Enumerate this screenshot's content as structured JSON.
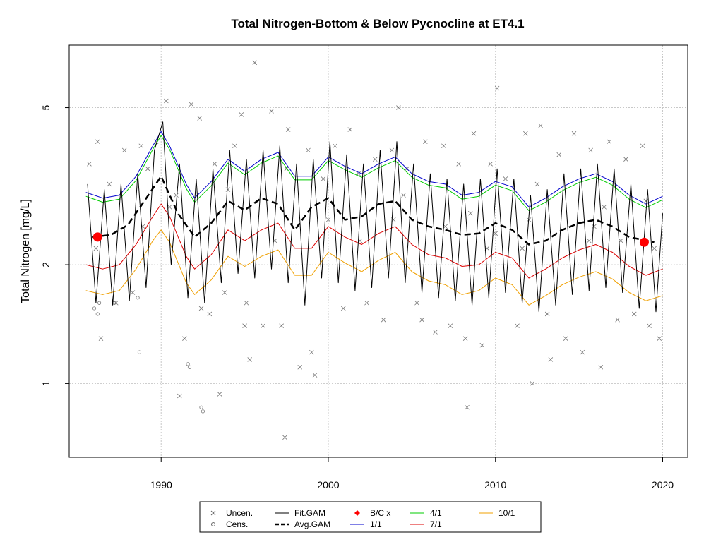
{
  "chart_data": {
    "type": "line",
    "title": "Total Nitrogen-Bottom & Below Pycnocline at ET4.1",
    "xlabel": "",
    "ylabel": "Total Nitrogen [mg/L]",
    "y_scale": "log",
    "xlim": [
      1984.5,
      2021.5
    ],
    "ylim": [
      0.65,
      7.2
    ],
    "x_ticks": [
      "1990",
      "2000",
      "2010",
      "2020"
    ],
    "y_ticks": [
      "1",
      "2",
      "5"
    ],
    "grid": true,
    "legend_position": "bottom",
    "legend": [
      {
        "label": "Uncen.",
        "kind": "x-marker",
        "color": "#666666"
      },
      {
        "label": "Cens.",
        "kind": "circle-marker",
        "color": "#666666"
      },
      {
        "label": "Fit.GAM",
        "kind": "line",
        "color": "#000000"
      },
      {
        "label": "Avg.GAM",
        "kind": "dashed-line",
        "color": "#000000"
      },
      {
        "label": "B/C x",
        "kind": "diamond-marker",
        "color": "#ff0000"
      },
      {
        "label": "1/1",
        "kind": "line",
        "color": "#0000cc"
      },
      {
        "label": "4/1",
        "kind": "line",
        "color": "#00cc00"
      },
      {
        "label": "7/1",
        "kind": "line",
        "color": "#dd0000"
      },
      {
        "label": "10/1",
        "kind": "line",
        "color": "#f0a000"
      }
    ],
    "series": [
      {
        "name": "Avg.GAM",
        "color": "#000000",
        "x": [
          1985.9,
          1987,
          1988,
          1989,
          1990,
          1991,
          1992,
          1993,
          1994,
          1995,
          1996,
          1997,
          1998,
          1999,
          2000,
          2001,
          2002,
          2003,
          2004,
          2005,
          2006,
          2007,
          2008,
          2009,
          2010,
          2011,
          2012,
          2013,
          2014,
          2015,
          2016,
          2017,
          2018,
          2019.5
        ],
        "y": [
          2.35,
          2.38,
          2.52,
          2.9,
          3.35,
          2.7,
          2.35,
          2.55,
          2.9,
          2.75,
          2.95,
          2.85,
          2.45,
          2.8,
          2.95,
          2.6,
          2.65,
          2.85,
          2.9,
          2.6,
          2.5,
          2.45,
          2.38,
          2.4,
          2.55,
          2.45,
          2.25,
          2.3,
          2.45,
          2.55,
          2.6,
          2.5,
          2.35,
          2.28
        ]
      },
      {
        "name": "1/1",
        "color": "#0000cc",
        "x": [
          1985.5,
          1986.5,
          1987.5,
          1988.5,
          1989.5,
          1990,
          1990.5,
          1991.5,
          1992,
          1993,
          1994,
          1995,
          1996,
          1997,
          1998,
          1999,
          2000,
          2001,
          2002,
          2003,
          2004,
          2005,
          2006,
          2007,
          2008,
          2009,
          2010,
          2011,
          2012,
          2013,
          2014,
          2015,
          2016,
          2017,
          2018,
          2019,
          2020
        ],
        "y": [
          3.05,
          2.95,
          3.0,
          3.35,
          4.0,
          4.35,
          4.0,
          3.2,
          2.95,
          3.25,
          3.7,
          3.45,
          3.7,
          3.85,
          3.35,
          3.35,
          3.75,
          3.55,
          3.4,
          3.6,
          3.75,
          3.4,
          3.25,
          3.2,
          3.0,
          3.05,
          3.25,
          3.15,
          2.8,
          2.95,
          3.15,
          3.3,
          3.4,
          3.25,
          3.0,
          2.85,
          2.98
        ]
      },
      {
        "name": "4/1",
        "color": "#00cc00",
        "x": [
          1985.5,
          1986.5,
          1987.5,
          1988.5,
          1989.5,
          1990,
          1990.5,
          1991.5,
          1992,
          1993,
          1994,
          1995,
          1996,
          1997,
          1998,
          1999,
          2000,
          2001,
          2002,
          2003,
          2004,
          2005,
          2006,
          2007,
          2008,
          2009,
          2010,
          2011,
          2012,
          2013,
          2014,
          2015,
          2016,
          2017,
          2018,
          2019,
          2020
        ],
        "y": [
          2.98,
          2.88,
          2.93,
          3.27,
          3.92,
          4.25,
          3.92,
          3.12,
          2.88,
          3.17,
          3.62,
          3.38,
          3.62,
          3.77,
          3.28,
          3.28,
          3.67,
          3.48,
          3.33,
          3.52,
          3.67,
          3.33,
          3.18,
          3.13,
          2.93,
          2.98,
          3.18,
          3.08,
          2.74,
          2.88,
          3.08,
          3.23,
          3.33,
          3.18,
          2.93,
          2.79,
          2.92
        ]
      },
      {
        "name": "7/1",
        "color": "#dd0000",
        "x": [
          1985.5,
          1986.5,
          1987.5,
          1988.5,
          1989.5,
          1990,
          1990.5,
          1991.5,
          1992,
          1993,
          1994,
          1995,
          1996,
          1997,
          1998,
          1999,
          2000,
          2001,
          2002,
          2003,
          2004,
          2005,
          2006,
          2007,
          2008,
          2009,
          2010,
          2011,
          2012,
          2013,
          2014,
          2015,
          2016,
          2017,
          2018,
          2019,
          2020
        ],
        "y": [
          2.0,
          1.95,
          2.0,
          2.25,
          2.65,
          2.85,
          2.65,
          2.1,
          1.95,
          2.12,
          2.45,
          2.3,
          2.45,
          2.55,
          2.2,
          2.2,
          2.5,
          2.35,
          2.25,
          2.4,
          2.5,
          2.25,
          2.12,
          2.08,
          1.98,
          2.0,
          2.15,
          2.08,
          1.85,
          1.95,
          2.08,
          2.18,
          2.25,
          2.15,
          1.98,
          1.88,
          1.95
        ]
      },
      {
        "name": "10/1",
        "color": "#f0a000",
        "x": [
          1985.5,
          1986.5,
          1987.5,
          1988.5,
          1989.5,
          1990,
          1990.5,
          1991.5,
          1992,
          1993,
          1994,
          1995,
          1996,
          1997,
          1998,
          1999,
          2000,
          2001,
          2002,
          2003,
          2004,
          2005,
          2006,
          2007,
          2008,
          2009,
          2010,
          2011,
          2012,
          2013,
          2014,
          2015,
          2016,
          2017,
          2018,
          2019,
          2020
        ],
        "y": [
          1.72,
          1.68,
          1.72,
          1.95,
          2.3,
          2.45,
          2.28,
          1.8,
          1.68,
          1.83,
          2.1,
          1.98,
          2.1,
          2.18,
          1.88,
          1.88,
          2.15,
          2.02,
          1.92,
          2.05,
          2.15,
          1.92,
          1.82,
          1.78,
          1.68,
          1.72,
          1.85,
          1.78,
          1.58,
          1.67,
          1.78,
          1.86,
          1.92,
          1.84,
          1.7,
          1.62,
          1.67
        ]
      },
      {
        "name": "Fit.GAM",
        "color": "#000000",
        "x": [
          1985.6,
          1986.1,
          1986.6,
          1987.1,
          1987.6,
          1988.1,
          1988.6,
          1989.1,
          1989.6,
          1990.1,
          1990.6,
          1991.1,
          1991.6,
          1992.1,
          1992.6,
          1993.1,
          1993.6,
          1994.1,
          1994.6,
          1995.1,
          1995.6,
          1996.1,
          1996.6,
          1997.1,
          1997.6,
          1998.1,
          1998.6,
          1999.1,
          1999.6,
          2000.1,
          2000.6,
          2001.1,
          2001.6,
          2002.1,
          2002.6,
          2003.1,
          2003.6,
          2004.1,
          2004.6,
          2005.1,
          2005.6,
          2006.1,
          2006.6,
          2007.1,
          2007.6,
          2008.1,
          2008.6,
          2009.1,
          2009.6,
          2010.1,
          2010.6,
          2011.1,
          2011.6,
          2012.1,
          2012.6,
          2013.1,
          2013.6,
          2014.1,
          2014.6,
          2015.1,
          2015.6,
          2016.1,
          2016.6,
          2017.1,
          2017.6,
          2018.1,
          2018.6,
          2019.1,
          2019.6,
          2020
        ],
        "y": [
          3.2,
          1.6,
          3.1,
          1.58,
          3.2,
          1.62,
          3.4,
          1.75,
          3.9,
          4.6,
          2.0,
          3.6,
          1.65,
          3.3,
          1.6,
          3.5,
          1.8,
          3.9,
          1.9,
          3.7,
          1.85,
          3.9,
          1.95,
          4.0,
          1.8,
          3.6,
          1.58,
          3.7,
          1.85,
          4.1,
          1.8,
          3.8,
          1.72,
          3.6,
          1.75,
          3.9,
          1.85,
          4.1,
          1.8,
          3.6,
          1.7,
          3.4,
          1.65,
          3.3,
          1.62,
          3.2,
          1.58,
          3.3,
          1.65,
          3.5,
          1.7,
          3.3,
          1.6,
          3.0,
          1.52,
          3.1,
          1.58,
          3.4,
          1.68,
          3.5,
          1.72,
          3.6,
          1.75,
          3.5,
          1.7,
          3.2,
          1.55,
          3.1,
          1.52,
          2.7
        ]
      }
    ],
    "bc_points": [
      {
        "label": "B/C x",
        "x": 1986.2,
        "y": 2.35
      },
      {
        "label": "B/C x",
        "x": 2018.9,
        "y": 2.28
      }
    ],
    "uncensored_points": {
      "x": [
        1985.7,
        1986.2,
        1986.4,
        1986.9,
        1987.3,
        1987.8,
        1988.3,
        1988.8,
        1989.2,
        1989.7,
        1990.3,
        1990.9,
        1991.4,
        1991.8,
        1992.3,
        1992.9,
        1993.2,
        1993.8,
        1994.4,
        1994.8,
        1995.1,
        1995.6,
        1996.1,
        1996.6,
        1997.2,
        1997.6,
        1998.3,
        1998.8,
        1999.2,
        1999.7,
        2000.4,
        2000.9,
        2001.3,
        2001.8,
        2002.3,
        2002.8,
        2003.3,
        2003.8,
        2004.2,
        2004.7,
        2005.3,
        2005.8,
        2006.4,
        2006.9,
        2007.3,
        2007.8,
        2008.2,
        2008.7,
        2009.2,
        2009.7,
        2010.1,
        2010.6,
        2011.3,
        2011.8,
        2012.2,
        2012.7,
        2013.3,
        2013.8,
        2014.2,
        2014.7,
        2015.2,
        2015.7,
        2016.3,
        2016.8,
        2017.3,
        2017.8,
        2018.3,
        2018.8,
        2019.2,
        2019.8,
        1986.1,
        1988.9,
        1991.1,
        1992.4,
        1993.5,
        1995.0,
        1996.8,
        1999.0,
        2001.9,
        2003.9,
        2005.6,
        2007.0,
        2009.5,
        2011.6,
        2013.1,
        2015.6,
        2017.5,
        2019.5,
        1990.5,
        1994.0,
        1997.5,
        2000.0,
        2004.5,
        2008.5,
        2012.5,
        2016.5,
        2019.0,
        1995.3,
        1997.4,
        2008.3,
        2010.0,
        2012.0,
        2015.9
      ],
      "y": [
        3.6,
        4.1,
        1.3,
        3.2,
        1.6,
        3.9,
        1.7,
        4.0,
        3.5,
        4.1,
        5.2,
        3.0,
        1.3,
        5.1,
        4.7,
        1.5,
        3.6,
        1.7,
        4.0,
        4.8,
        1.6,
        6.5,
        1.4,
        4.9,
        1.4,
        4.4,
        1.1,
        3.9,
        1.05,
        3.3,
        4.0,
        1.55,
        4.4,
        3.4,
        1.6,
        3.7,
        1.45,
        3.9,
        5.0,
        3.5,
        1.6,
        4.1,
        1.35,
        4.0,
        1.4,
        3.6,
        1.3,
        4.3,
        1.25,
        3.6,
        5.6,
        3.3,
        1.4,
        4.3,
        1.0,
        4.5,
        1.15,
        3.8,
        1.3,
        4.3,
        1.2,
        3.9,
        1.1,
        4.1,
        1.45,
        3.7,
        1.5,
        4.0,
        1.4,
        1.3,
        2.2,
        2.5,
        0.93,
        1.55,
        0.94,
        1.4,
        2.3,
        1.2,
        2.3,
        2.6,
        1.45,
        2.5,
        2.2,
        2.2,
        1.5,
        2.3,
        2.3,
        2.2,
        2.8,
        3.1,
        3.5,
        2.6,
        3.0,
        2.7,
        3.2,
        2.8,
        2.9,
        1.15,
        0.73,
        0.87,
        2.4,
        2.6,
        2.5
      ]
    },
    "censored_points": {
      "x": [
        1986.0,
        1986.2,
        1987.2,
        1988.7,
        1991.6,
        1992.5,
        1986.3,
        1988.6,
        1991.7,
        1992.4
      ],
      "y": [
        1.55,
        1.5,
        1.6,
        1.2,
        1.12,
        0.85,
        1.6,
        1.65,
        1.1,
        0.87
      ]
    }
  }
}
